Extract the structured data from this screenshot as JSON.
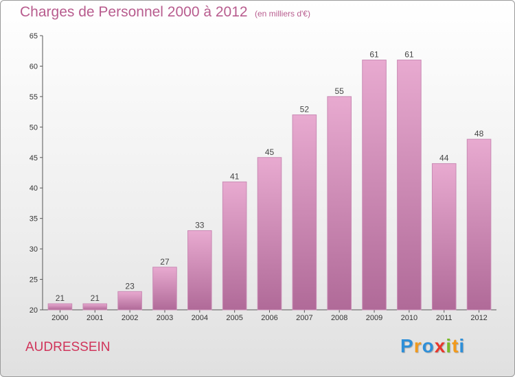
{
  "header": {
    "title": "Charges de Personnel 2000 à 2012",
    "subtitle": "(en milliers d'€)"
  },
  "footer": {
    "commune": "AUDRESSEIN",
    "logo_letters": [
      {
        "char": "P",
        "color": "#2e8fd8"
      },
      {
        "char": "r",
        "color": "#f29a1c"
      },
      {
        "char": "o",
        "color": "#2e8fd8"
      },
      {
        "char": "x",
        "color": "#e8372c"
      },
      {
        "char": "i",
        "color": "#7ab929"
      },
      {
        "char": "t",
        "color": "#f29a1c"
      },
      {
        "char": "i",
        "color": "#2e8fd8"
      }
    ]
  },
  "colors": {
    "bar_light": "#e8aad0",
    "bar_dark": "#b06a98",
    "bar_edge": "#c98ab4"
  },
  "chart_data": {
    "type": "bar",
    "title": "Charges de Personnel 2000 à 2012",
    "subtitle": "(en milliers d'€)",
    "categories": [
      "2000",
      "2001",
      "2002",
      "2003",
      "2004",
      "2005",
      "2006",
      "2007",
      "2008",
      "2009",
      "2010",
      "2011",
      "2012"
    ],
    "values": [
      21,
      21,
      23,
      27,
      33,
      41,
      45,
      52,
      55,
      61,
      61,
      44,
      48
    ],
    "ylim": [
      20,
      65
    ],
    "yticks": [
      20,
      25,
      30,
      35,
      40,
      45,
      50,
      55,
      60,
      65
    ],
    "xlabel": "",
    "ylabel": "",
    "grid": false,
    "data_labels": true
  }
}
